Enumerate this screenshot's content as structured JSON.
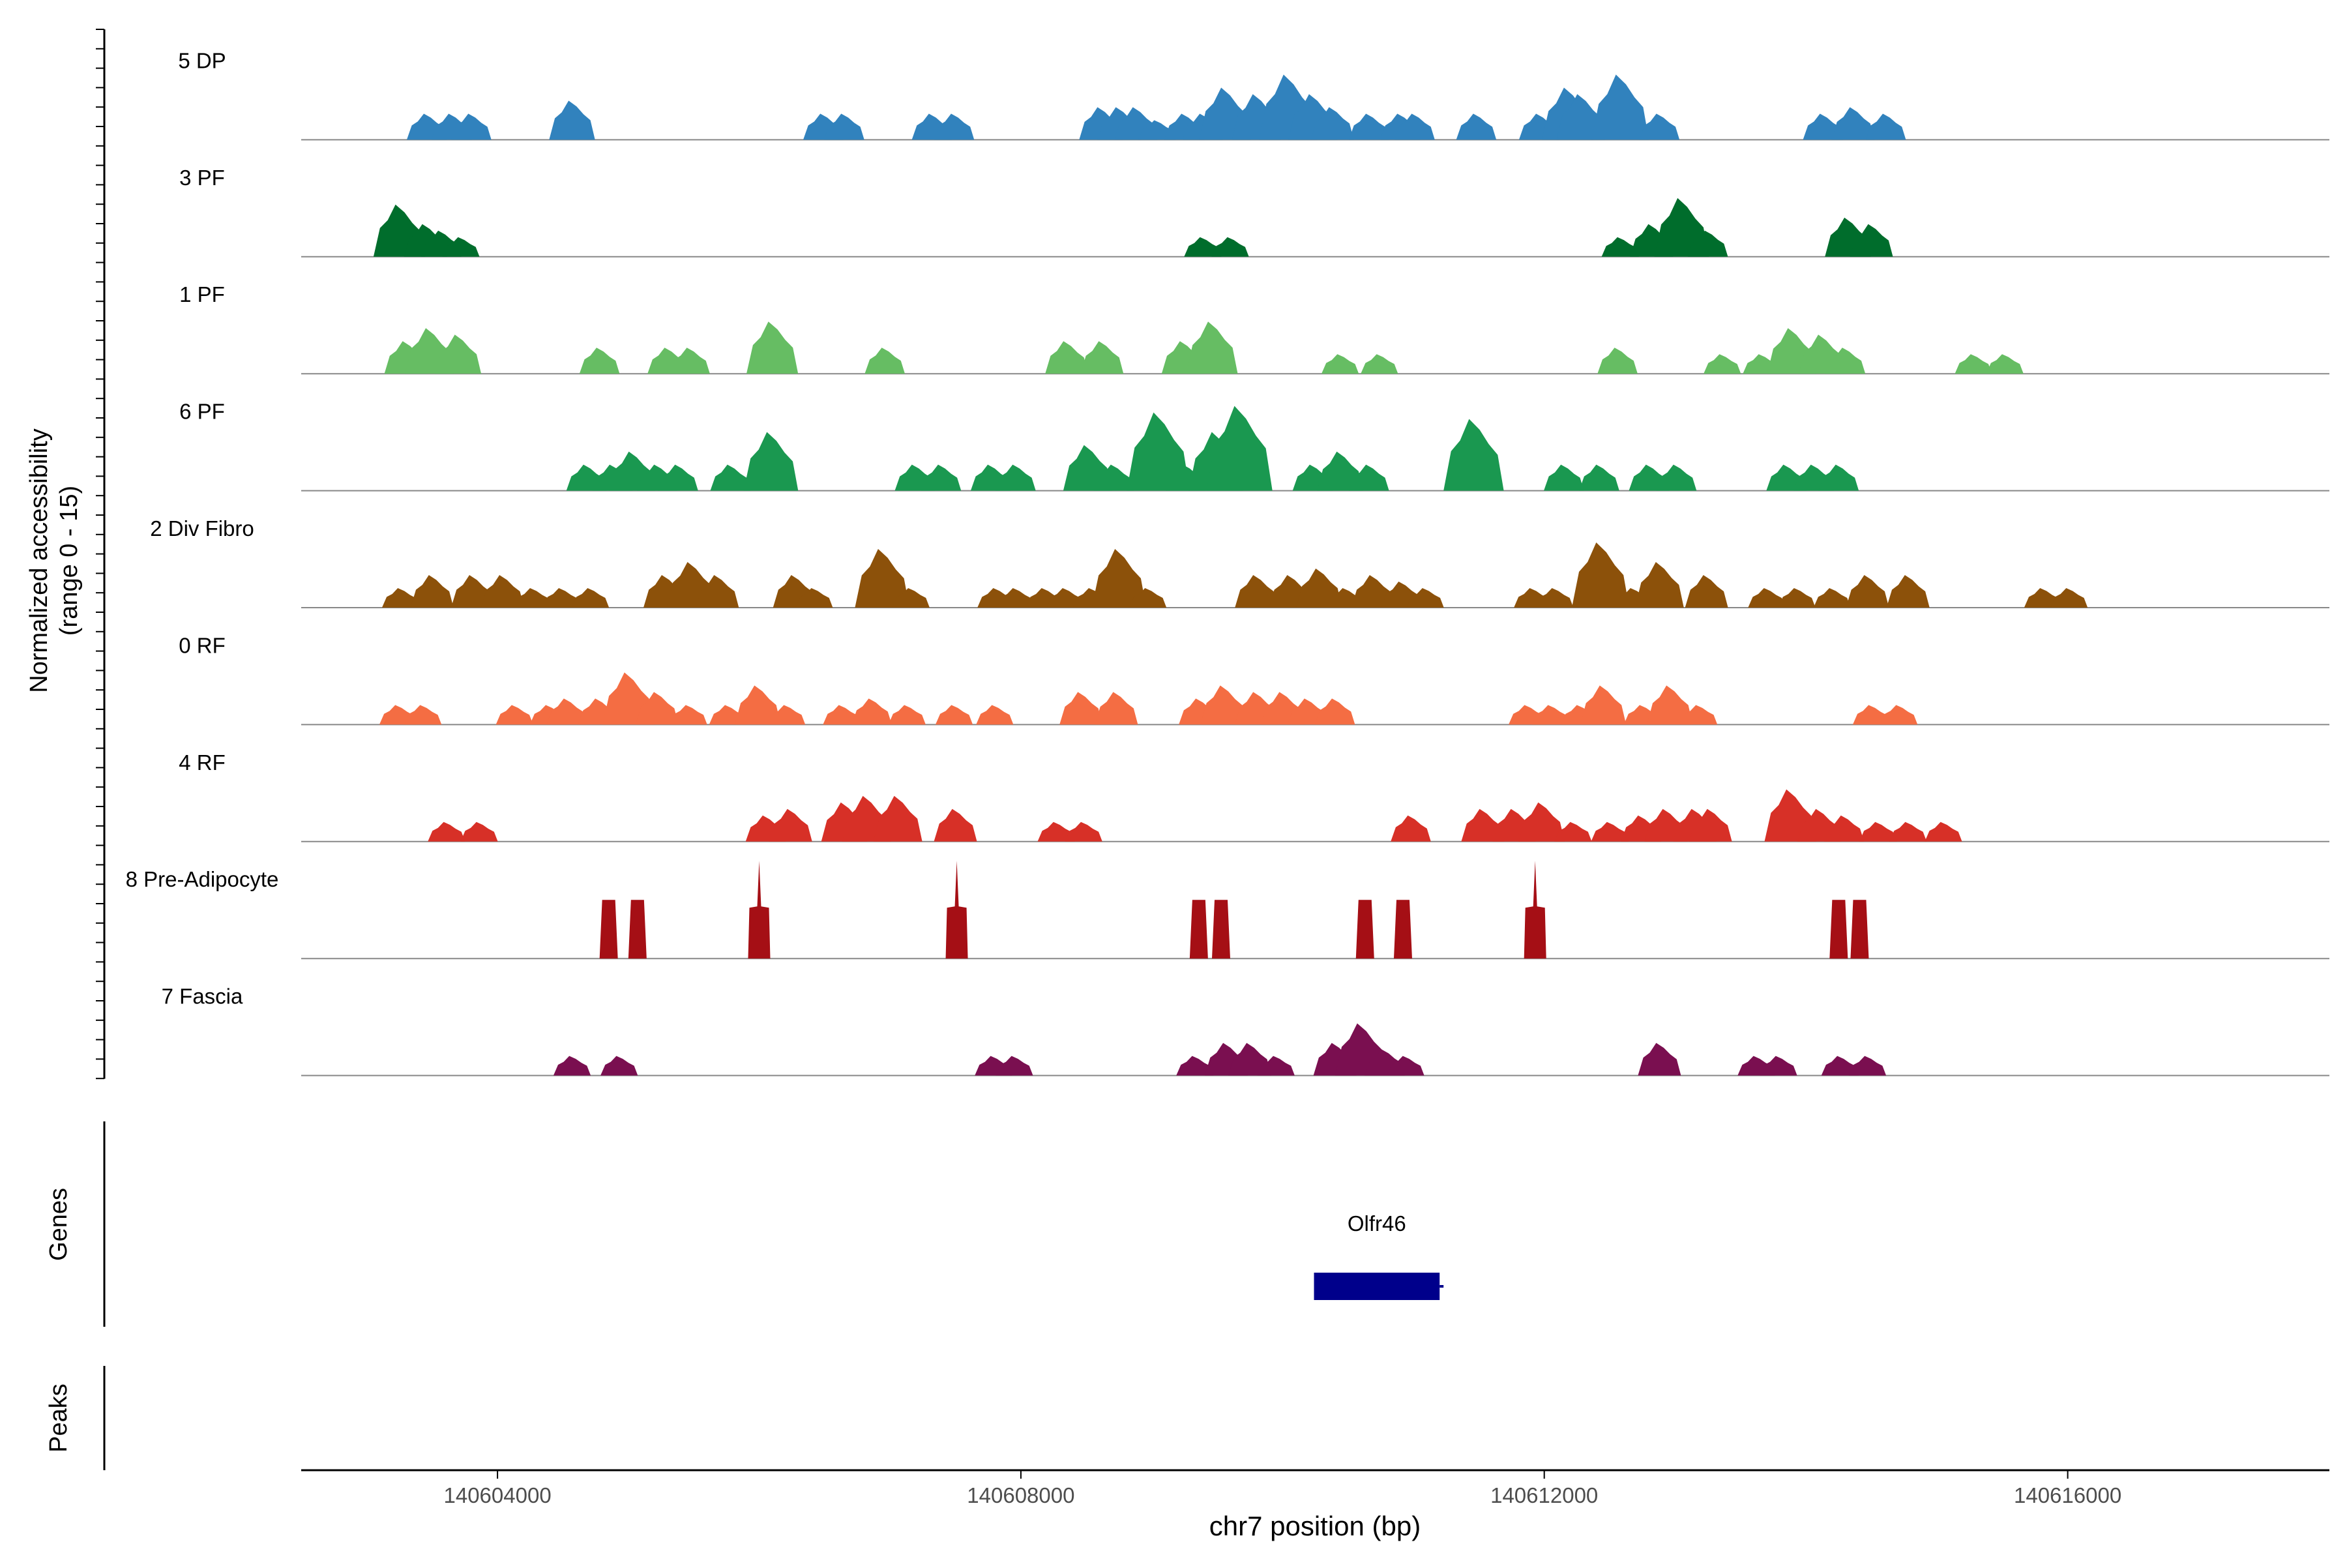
{
  "chart_data": {
    "type": "area",
    "title": "",
    "chromosome": "chr7",
    "xlabel": "chr7 position (bp)",
    "ylabel_line1": "Normalized accessibility",
    "ylabel_line2": "(range 0 - 15)",
    "y_range": [
      0,
      15
    ],
    "xlim": [
      140602500,
      140618000
    ],
    "x_ticks": [
      140604000,
      140608000,
      140612000,
      140616000
    ],
    "x_tick_labels": [
      "140604000",
      "140608000",
      "140612000",
      "140616000"
    ],
    "panel_labels": {
      "genes": "Genes",
      "peaks": "Peaks"
    },
    "series": [
      {
        "name": "5 DP",
        "color": "#3182bd",
        "peaks": [
          [
            140603460,
            4
          ],
          [
            140603650,
            4
          ],
          [
            140603800,
            4
          ],
          [
            140604570,
            6
          ],
          [
            140606490,
            4
          ],
          [
            140606650,
            4
          ],
          [
            140607320,
            4
          ],
          [
            140607490,
            4
          ],
          [
            140608610,
            5
          ],
          [
            140608750,
            5
          ],
          [
            140608880,
            5
          ],
          [
            140609040,
            3
          ],
          [
            140609250,
            4
          ],
          [
            140609390,
            4
          ],
          [
            140609560,
            8
          ],
          [
            140609800,
            7
          ],
          [
            140610040,
            10
          ],
          [
            140610230,
            7
          ],
          [
            140610380,
            5
          ],
          [
            140610660,
            4
          ],
          [
            140610900,
            4
          ],
          [
            140611010,
            4
          ],
          [
            140611480,
            4
          ],
          [
            140611960,
            4
          ],
          [
            140612180,
            8
          ],
          [
            140612280,
            7
          ],
          [
            140612580,
            10
          ],
          [
            140612880,
            4
          ],
          [
            140614130,
            4
          ],
          [
            140614360,
            5
          ],
          [
            140614610,
            4
          ]
        ]
      },
      {
        "name": "3 PF",
        "color": "#006d2c",
        "peaks": [
          [
            140603250,
            8
          ],
          [
            140603450,
            5
          ],
          [
            140603570,
            4
          ],
          [
            140603720,
            3
          ],
          [
            140609390,
            3
          ],
          [
            140609600,
            3
          ],
          [
            140612580,
            3
          ],
          [
            140612820,
            5
          ],
          [
            140613050,
            9
          ],
          [
            140613250,
            4
          ],
          [
            140614320,
            6
          ],
          [
            140614500,
            5
          ]
        ]
      },
      {
        "name": "1 PF",
        "color": "#66bd63",
        "peaks": [
          [
            140603300,
            5
          ],
          [
            140603480,
            7
          ],
          [
            140603700,
            6
          ],
          [
            140604780,
            4
          ],
          [
            140605300,
            4
          ],
          [
            140605470,
            4
          ],
          [
            140606100,
            8
          ],
          [
            140606960,
            4
          ],
          [
            140608350,
            5
          ],
          [
            140608620,
            5
          ],
          [
            140609240,
            5
          ],
          [
            140609460,
            8
          ],
          [
            140610440,
            3
          ],
          [
            140610740,
            3
          ],
          [
            140612560,
            4
          ],
          [
            140613360,
            3
          ],
          [
            140613660,
            3
          ],
          [
            140613890,
            7
          ],
          [
            140614120,
            6
          ],
          [
            140614300,
            4
          ],
          [
            140615280,
            3
          ],
          [
            140615520,
            3
          ]
        ]
      },
      {
        "name": "6 PF",
        "color": "#1a9850",
        "peaks": [
          [
            140604680,
            4
          ],
          [
            140604880,
            4
          ],
          [
            140605030,
            6
          ],
          [
            140605220,
            4
          ],
          [
            140605380,
            4
          ],
          [
            140605780,
            4
          ],
          [
            140606090,
            9
          ],
          [
            140607190,
            4
          ],
          [
            140607390,
            4
          ],
          [
            140607770,
            4
          ],
          [
            140607960,
            4
          ],
          [
            140608510,
            7
          ],
          [
            140608710,
            4
          ],
          [
            140609050,
            12
          ],
          [
            140609260,
            4
          ],
          [
            140609490,
            9
          ],
          [
            140609670,
            13
          ],
          [
            140610230,
            4
          ],
          [
            140610440,
            6
          ],
          [
            140610660,
            4
          ],
          [
            140611460,
            11
          ],
          [
            140612150,
            4
          ],
          [
            140612420,
            4
          ],
          [
            140612800,
            4
          ],
          [
            140613010,
            4
          ],
          [
            140613850,
            4
          ],
          [
            140614060,
            4
          ],
          [
            140614250,
            4
          ]
        ]
      },
      {
        "name": "2 Div Fibro",
        "color": "#8c510a",
        "peaks": [
          [
            140603260,
            3
          ],
          [
            140603500,
            5
          ],
          [
            140603810,
            5
          ],
          [
            140604040,
            5
          ],
          [
            140604270,
            3
          ],
          [
            140604490,
            3
          ],
          [
            140604710,
            3
          ],
          [
            140605280,
            5
          ],
          [
            140605480,
            7
          ],
          [
            140605680,
            5
          ],
          [
            140606270,
            5
          ],
          [
            140606420,
            3
          ],
          [
            140606940,
            9
          ],
          [
            140607160,
            3
          ],
          [
            140607810,
            3
          ],
          [
            140607960,
            3
          ],
          [
            140608180,
            3
          ],
          [
            140608340,
            3
          ],
          [
            140608540,
            3
          ],
          [
            140608750,
            9
          ],
          [
            140608970,
            3
          ],
          [
            140609800,
            5
          ],
          [
            140610060,
            5
          ],
          [
            140610280,
            6
          ],
          [
            140610480,
            3
          ],
          [
            140610690,
            5
          ],
          [
            140610910,
            4
          ],
          [
            140611090,
            3
          ],
          [
            140611910,
            3
          ],
          [
            140612080,
            3
          ],
          [
            140612430,
            10
          ],
          [
            140612680,
            3
          ],
          [
            140612880,
            7
          ],
          [
            140613240,
            5
          ],
          [
            140613700,
            3
          ],
          [
            140613930,
            3
          ],
          [
            140614200,
            3
          ],
          [
            140614470,
            5
          ],
          [
            140614780,
            5
          ],
          [
            140615810,
            3
          ],
          [
            140616010,
            3
          ]
        ]
      },
      {
        "name": "0 RF",
        "color": "#f46d43",
        "peaks": [
          [
            140603240,
            3
          ],
          [
            140603430,
            3
          ],
          [
            140604130,
            3
          ],
          [
            140604390,
            3
          ],
          [
            140604530,
            4
          ],
          [
            140604770,
            4
          ],
          [
            140605000,
            8
          ],
          [
            140605220,
            5
          ],
          [
            140605460,
            3
          ],
          [
            140605760,
            3
          ],
          [
            140605990,
            6
          ],
          [
            140606210,
            3
          ],
          [
            140606630,
            3
          ],
          [
            140606860,
            4
          ],
          [
            140607130,
            3
          ],
          [
            140607490,
            3
          ],
          [
            140607800,
            3
          ],
          [
            140608460,
            5
          ],
          [
            140608730,
            5
          ],
          [
            140609360,
            4
          ],
          [
            140609550,
            6
          ],
          [
            140609800,
            5
          ],
          [
            140610000,
            5
          ],
          [
            140610190,
            4
          ],
          [
            140610400,
            4
          ],
          [
            140611870,
            3
          ],
          [
            140612050,
            3
          ],
          [
            140612270,
            3
          ],
          [
            140612450,
            6
          ],
          [
            140612750,
            3
          ],
          [
            140612960,
            6
          ],
          [
            140613180,
            3
          ],
          [
            140614500,
            3
          ],
          [
            140614710,
            3
          ]
        ]
      },
      {
        "name": "4 RF",
        "color": "#d73027",
        "peaks": [
          [
            140603610,
            3
          ],
          [
            140603860,
            3
          ],
          [
            140606050,
            4
          ],
          [
            140606240,
            5
          ],
          [
            140606650,
            6
          ],
          [
            140606820,
            7
          ],
          [
            140607060,
            7
          ],
          [
            140607500,
            5
          ],
          [
            140608270,
            3
          ],
          [
            140608480,
            3
          ],
          [
            140610980,
            4
          ],
          [
            140611530,
            5
          ],
          [
            140611770,
            5
          ],
          [
            140611980,
            6
          ],
          [
            140612220,
            3
          ],
          [
            140612500,
            3
          ],
          [
            140612740,
            4
          ],
          [
            140612930,
            5
          ],
          [
            140613150,
            5
          ],
          [
            140613270,
            5
          ],
          [
            140613880,
            8
          ],
          [
            140614100,
            5
          ],
          [
            140614290,
            4
          ],
          [
            140614550,
            3
          ],
          [
            140614780,
            3
          ],
          [
            140615050,
            3
          ]
        ]
      },
      {
        "name": "8 Pre-Adipocyte",
        "color": "#a50f15",
        "peaks": [
          [
            140604850,
            9
          ],
          [
            140605070,
            9
          ],
          [
            140606000,
            15
          ],
          [
            140607510,
            15
          ],
          [
            140609360,
            9
          ],
          [
            140609530,
            9
          ],
          [
            140610630,
            9
          ],
          [
            140610920,
            9
          ],
          [
            140611930,
            15
          ],
          [
            140614250,
            9
          ],
          [
            140614410,
            9
          ]
        ]
      },
      {
        "name": "7 Fascia",
        "color": "#7a0f50",
        "peaks": [
          [
            140604570,
            3
          ],
          [
            140604930,
            3
          ],
          [
            140607790,
            3
          ],
          [
            140607950,
            3
          ],
          [
            140609330,
            3
          ],
          [
            140609570,
            5
          ],
          [
            140609750,
            5
          ],
          [
            140609950,
            3
          ],
          [
            140610400,
            5
          ],
          [
            140610600,
            8
          ],
          [
            140610780,
            4
          ],
          [
            140610940,
            3
          ],
          [
            140612880,
            5
          ],
          [
            140613620,
            3
          ],
          [
            140613790,
            3
          ],
          [
            140614260,
            3
          ],
          [
            140614470,
            3
          ]
        ]
      }
    ],
    "genes": [
      {
        "name": "Olfr46",
        "start": 140610240,
        "end": 140611200,
        "color": "#00008b"
      }
    ],
    "peaks_track": []
  }
}
